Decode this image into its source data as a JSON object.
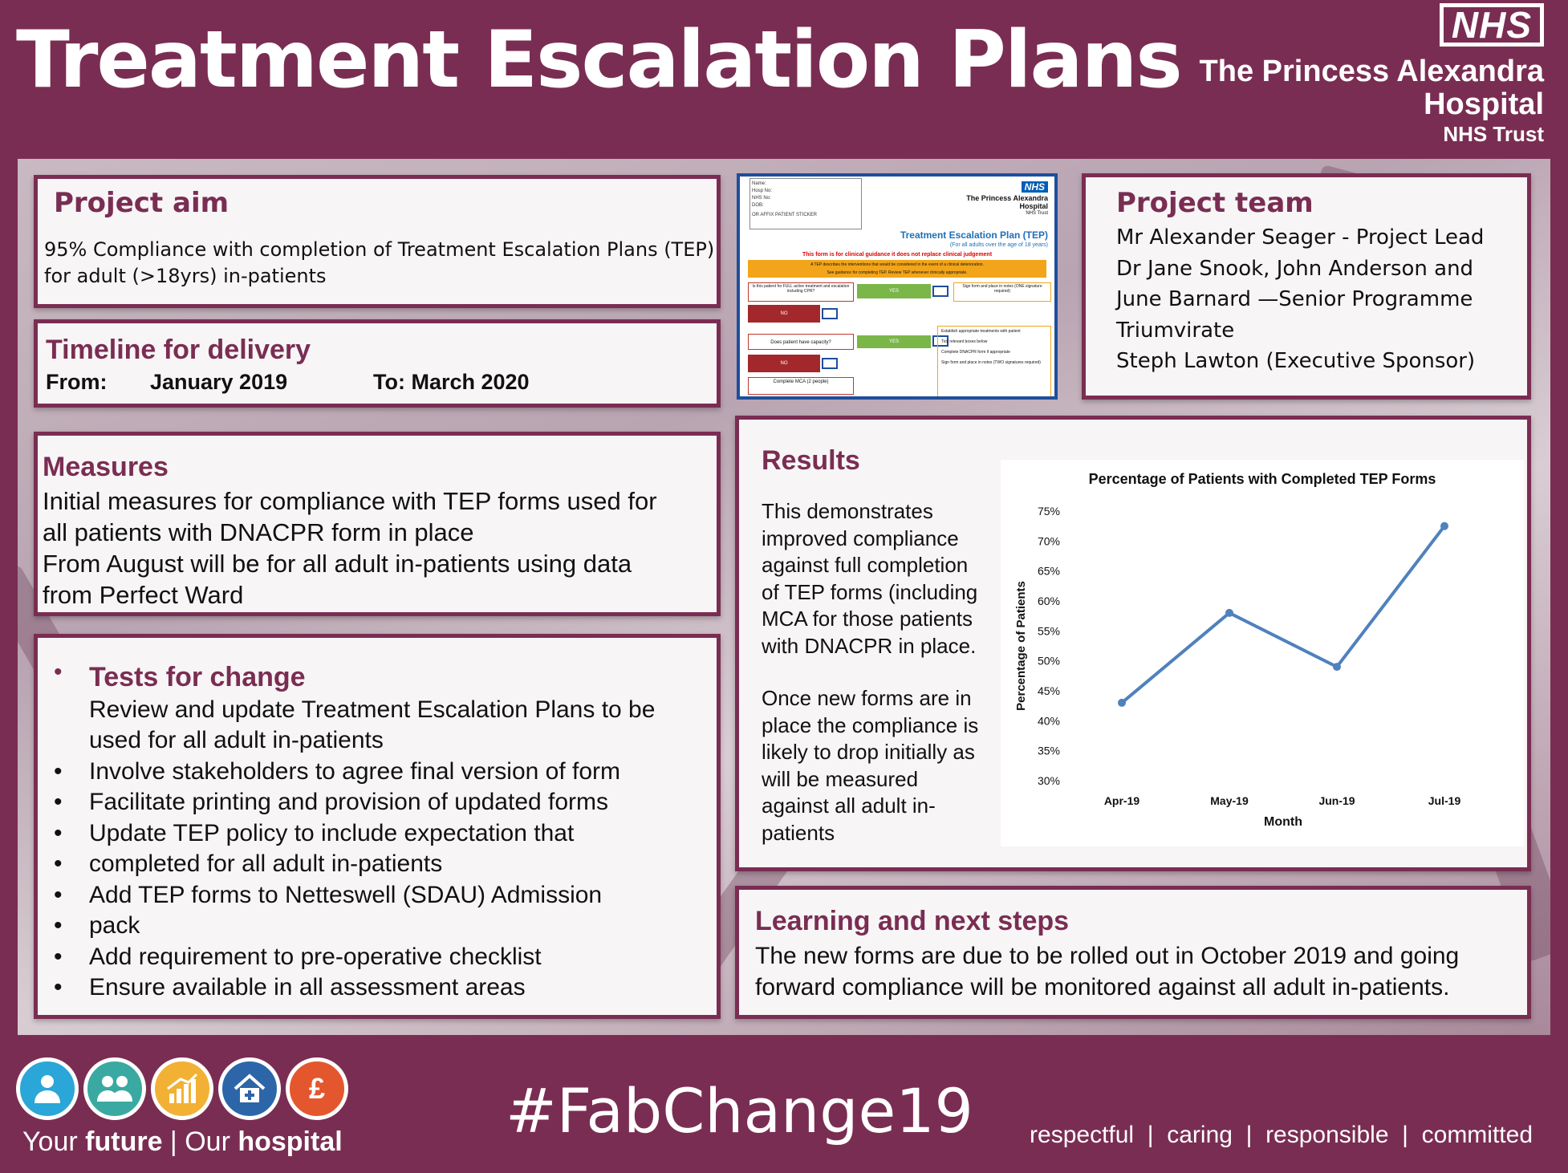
{
  "header": {
    "title": "Treatment Escalation Plans",
    "nhs_logo": "NHS",
    "trust_line1": "The Princess Alexandra",
    "trust_line2": "Hospital",
    "trust_line3": "NHS Trust"
  },
  "aim": {
    "title": "Project aim",
    "text_line1": "95% Compliance with completion of Treatment Escalation Plans (TEP)",
    "text_line2": "for adult (>18yrs) in-patients"
  },
  "timeline": {
    "title": "Timeline for delivery",
    "from_label": "From:",
    "from_value": "January 2019",
    "to_label": "To: March 2020"
  },
  "measures": {
    "title": "Measures",
    "line1": "Initial measures for compliance with TEP forms used for",
    "line2": "all patients with DNACPR form in place",
    "line3": "From August will be for all adult in-patients using data",
    "line4": "from Perfect Ward"
  },
  "tests": {
    "title": "Tests for change",
    "intro_line1": "Review and update Treatment Escalation Plans to be",
    "intro_line2": "used for all adult in-patients",
    "items": [
      "Involve stakeholders to agree final version of form",
      "Facilitate printing and provision of updated forms",
      "Update TEP policy to include expectation that",
      "completed for all adult in-patients",
      "Add TEP forms to Netteswell (SDAU)  Admission",
      "pack",
      "Add requirement to pre-operative checklist",
      "Ensure available in all assessment areas"
    ]
  },
  "team": {
    "title": "Project team",
    "lines": [
      "Mr Alexander Seager  - Project Lead",
      "Dr Jane Snook, John Anderson and",
      "June Barnard —Senior Programme",
      "Triumvirate",
      "Steph Lawton (Executive Sponsor)"
    ]
  },
  "form_image": {
    "patient_fields": [
      "Name:",
      "Hosp No:",
      "NHS No:",
      "DOB:"
    ],
    "sticker_note": "OR AFFIX PATIENT STICKER",
    "nhs": "NHS",
    "hospital_line1": "The Princess Alexandra",
    "hospital_line2": "Hospital",
    "hospital_line3": "NHS Trust",
    "form_title": "Treatment Escalation Plan (TEP)",
    "form_subtitle": "(For all adults over the age of 18 years)",
    "form_warning": "This form is for clinical guidance it does not replace clinical judgement",
    "banner_line1": "A TEP describes the interventions that would be considered in the event of a clinical deterioration.",
    "banner_line2": "See guidance for completing TEP.          Review TEP whenever clinically appropriate.",
    "q1": "Is this patient for FULL active treatment and escalation including CPR?",
    "q2": "Does patient have capacity?",
    "yes": "YES",
    "no": "NO",
    "sign1": "Sign form and place in notes (ONE signature required)",
    "mca": "Complete MCA (2 people)",
    "steps": [
      "Establish appropriate treatments with patient",
      "Tick relevant boxes below",
      "Complete DNACPR form if appropriate",
      "Sign form and place in notes (TWO signatures required)"
    ]
  },
  "results": {
    "title": "Results",
    "para1": [
      "This demonstrates",
      "improved compliance",
      "against full completion",
      "of TEP forms (including",
      "MCA  for those patients",
      "with DNACPR in place."
    ],
    "para2": [
      "Once new forms are  in",
      "place the compliance is",
      "likely to drop initially as",
      "will be measured",
      "against all adult in-",
      "patients"
    ]
  },
  "chart_data": {
    "type": "line",
    "title": "Percentage of Patients with Completed TEP Forms",
    "xlabel": "Month",
    "ylabel": "Percentage of Patients",
    "categories": [
      "Apr-19",
      "May-19",
      "Jun-19",
      "Jul-19"
    ],
    "values": [
      43,
      58,
      49,
      72.5
    ],
    "ylim": [
      30,
      75
    ],
    "yticks": [
      "30%",
      "35%",
      "40%",
      "45%",
      "50%",
      "55%",
      "60%",
      "65%",
      "70%",
      "75%"
    ],
    "grid": false,
    "line_color": "#4f81bd"
  },
  "learning": {
    "title": "Learning and next steps",
    "line1": "The new forms are due to be rolled out in October 2019 and going",
    "line2": "forward compliance will be monitored against all adult in-patients."
  },
  "footer": {
    "icons": [
      "patient-icon",
      "people-icon",
      "growth-chart-icon",
      "hospital-house-icon",
      "pound-icon"
    ],
    "icon_colors": [
      "#2aa6d8",
      "#3aa9a1",
      "#f2b134",
      "#2d66a8",
      "#e4572e"
    ],
    "tag_your": "Your ",
    "tag_future": "future",
    "tag_sep": " | Our ",
    "tag_hospital": "hospital",
    "hashtag": "#FabChange19",
    "values": "respectful  |  caring  |  responsible  |  committed"
  }
}
